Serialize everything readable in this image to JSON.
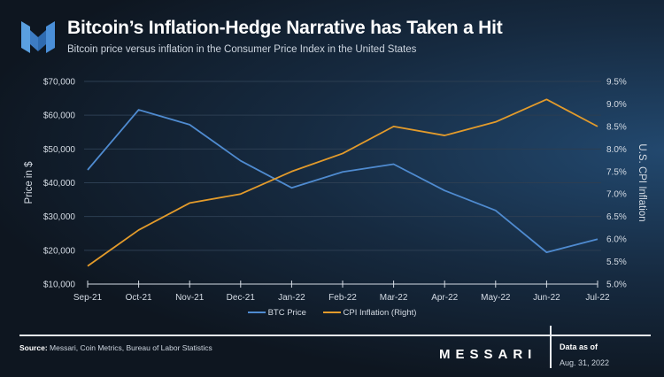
{
  "header": {
    "title": "Bitcoin’s Inflation-Hedge Narrative has Taken a Hit",
    "subtitle": "Bitcoin price versus inflation in the Consumer Price Index in the United States"
  },
  "chart_data": {
    "type": "line",
    "categories": [
      "Sep-21",
      "Oct-21",
      "Nov-21",
      "Dec-21",
      "Jan-22",
      "Feb-22",
      "Mar-22",
      "Apr-22",
      "May-22",
      "Jun-22",
      "Jul-22"
    ],
    "series": [
      {
        "name": "BTC Price",
        "axis": "left",
        "color": "#4f8bd0",
        "values": [
          43800,
          61600,
          57200,
          46500,
          38500,
          43200,
          45500,
          37700,
          31800,
          19400,
          23300
        ]
      },
      {
        "name": "CPI Inflation (Right)",
        "axis": "right",
        "color": "#e39b2b",
        "values": [
          5.4,
          6.2,
          6.8,
          7.0,
          7.5,
          7.9,
          8.5,
          8.3,
          8.6,
          9.1,
          8.5
        ]
      }
    ],
    "ylabel": "Price in $",
    "y2label": "U.S. CPI Inflation",
    "ylim": [
      10000,
      70000
    ],
    "y2lim": [
      5.0,
      9.5
    ],
    "yticks": [
      "$10,000",
      "$20,000",
      "$30,000",
      "$40,000",
      "$50,000",
      "$60,000",
      "$70,000"
    ],
    "y2ticks": [
      "5.0%",
      "5.5%",
      "6.0%",
      "6.5%",
      "7.0%",
      "7.5%",
      "8.0%",
      "8.5%",
      "9.0%",
      "9.5%"
    ],
    "grid": true,
    "legend": "bottom"
  },
  "footer": {
    "source_label": "Source:",
    "source_text": " Messari, Coin Metrics, Bureau of Labor Statistics",
    "brand": "MESSARI",
    "data_as_of_label": "Data as of",
    "data_as_of_date": "Aug. 31, 2022"
  }
}
